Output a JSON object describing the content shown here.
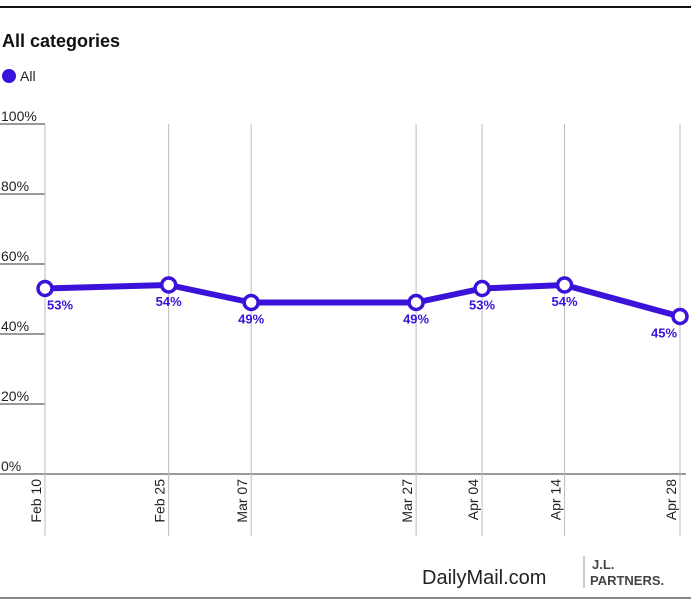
{
  "chart_data": {
    "type": "line",
    "title": "All categories",
    "x": [
      "Feb 10",
      "Feb 25",
      "Mar 07",
      "Mar 27",
      "Apr 04",
      "Apr 14",
      "Apr 28"
    ],
    "series": [
      {
        "name": "All",
        "color": "#3b12d9",
        "values": [
          53,
          54,
          49,
          49,
          53,
          54,
          45
        ],
        "value_labels": [
          "53%",
          "54%",
          "49%",
          "49%",
          "53%",
          "54%",
          "45%"
        ]
      }
    ],
    "ylim": [
      0,
      100
    ],
    "yticks": [
      {
        "value": 0,
        "label": "0%"
      },
      {
        "value": 20,
        "label": "20%"
      },
      {
        "value": 40,
        "label": "40%"
      },
      {
        "value": 60,
        "label": "60%"
      },
      {
        "value": 80,
        "label": "80%"
      },
      {
        "value": 100,
        "label": "100%"
      }
    ],
    "grid": true,
    "source": {
      "brand": "DailyMail.com",
      "partner_top": "J.L.",
      "partner_bottom": "PARTNERS."
    }
  }
}
